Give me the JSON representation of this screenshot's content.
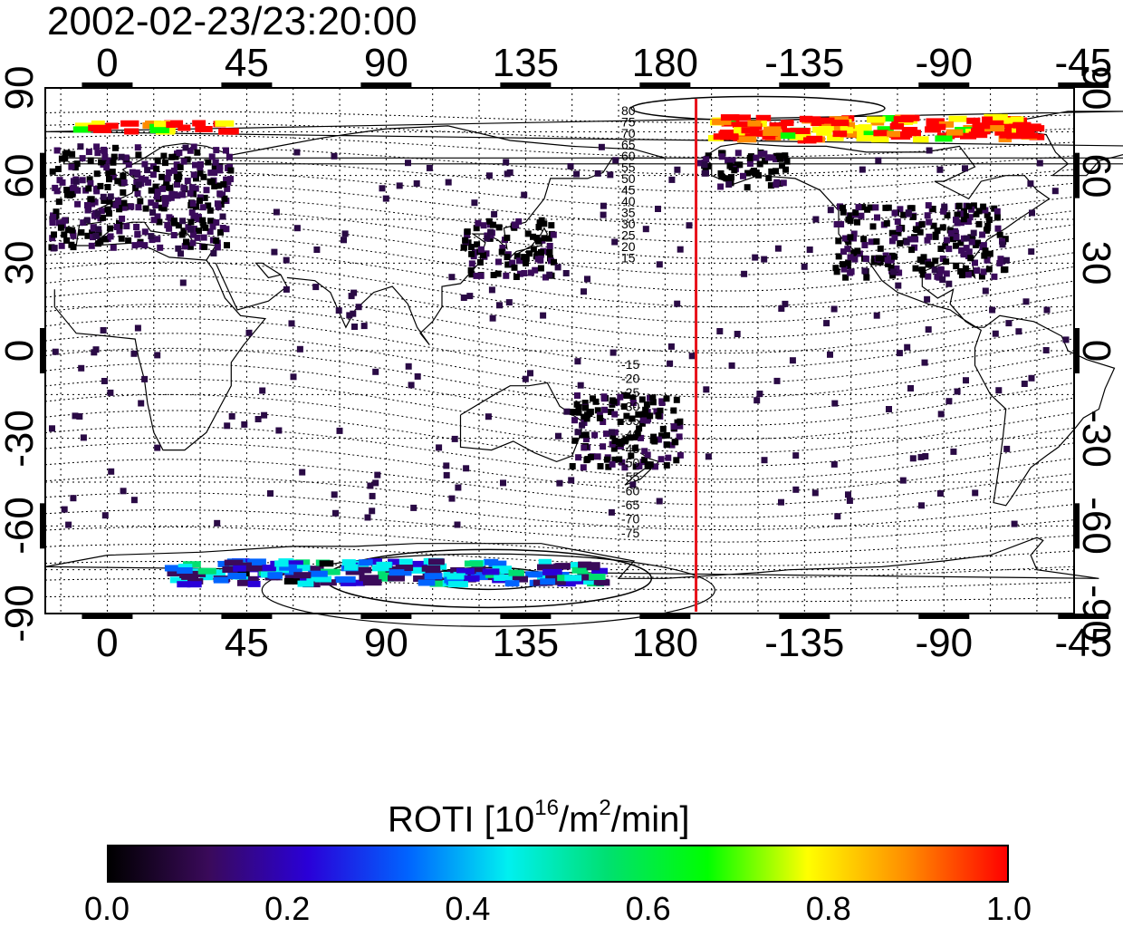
{
  "timestamp": "2002-02-23/23:20:00",
  "map": {
    "title": "2002-02-23/23:20:00",
    "x_top_ticks": [
      "0",
      "45",
      "90",
      "135",
      "180",
      "-135",
      "-90",
      "-45"
    ],
    "x_bottom_ticks": [
      "0",
      "45",
      "90",
      "135",
      "180",
      "-135",
      "-90",
      "-45"
    ],
    "y_left_ticks": [
      "90",
      "60",
      "30",
      "0",
      "-30",
      "-60",
      "-90"
    ],
    "y_right_ticks": [
      "90",
      "60",
      "30",
      "0",
      "-30",
      "-60",
      "-90"
    ],
    "terminator_longitude": -170,
    "terminator_color": "#e8121a",
    "contour_labels": [
      "80",
      "75",
      "70",
      "65",
      "60",
      "55",
      "50",
      "45",
      "40",
      "35",
      "30",
      "25",
      "20",
      "15",
      "-15",
      "-20",
      "-25",
      "-30",
      "-35",
      "-40",
      "-45",
      "-50",
      "-55",
      "-60",
      "-65",
      "-70",
      "-75"
    ],
    "x_range": [
      -20,
      312
    ],
    "y_range": [
      -90,
      90
    ]
  },
  "colorbar": {
    "title_main": "ROTI  [10",
    "title_sup1": "16",
    "title_mid": "/m",
    "title_sup2": "2",
    "title_end": "/min]",
    "ticks": [
      "0.0",
      "0.2",
      "0.4",
      "0.6",
      "0.8",
      "1.0"
    ],
    "range": [
      0.0,
      1.0
    ],
    "colors": [
      "#000000",
      "#3a0a5a",
      "#2a00d8",
      "#0064ff",
      "#00f0f0",
      "#00e070",
      "#00ff00",
      "#ffff00",
      "#ff8c00",
      "#ff0000"
    ]
  },
  "chart_data": {
    "type": "heatmap",
    "title": "2002-02-23/23:20:00",
    "value_label": "ROTI  [10^16/m^2/min]",
    "value_range": [
      0.0,
      1.0
    ],
    "x_ticks": [
      0,
      45,
      90,
      135,
      180,
      -135,
      -90,
      -45
    ],
    "y_ticks": [
      90,
      60,
      30,
      0,
      -30,
      -60,
      -90
    ],
    "regions": [
      {
        "lon_min": -18,
        "lon_max": 40,
        "lat_min": 35,
        "lat_max": 70,
        "value": 0.06
      },
      {
        "lon_min": 115,
        "lon_max": 145,
        "lat_min": 25,
        "lat_max": 45,
        "value": 0.05
      },
      {
        "lon_min": 150,
        "lon_max": 185,
        "lat_min": -40,
        "lat_max": -15,
        "value": 0.05
      },
      {
        "lon_min": -125,
        "lon_max": -70,
        "lat_min": 25,
        "lat_max": 50,
        "value": 0.05
      },
      {
        "lon_min": 190,
        "lon_max": 220,
        "lat_min": 55,
        "lat_max": 68,
        "value": 0.05
      },
      {
        "lon_min": -10,
        "lon_max": 40,
        "lat_min": 75,
        "lat_max": 78,
        "value": 0.9
      },
      {
        "lon_min": 195,
        "lon_max": 300,
        "lat_min": 72,
        "lat_max": 80,
        "value": 0.95
      },
      {
        "lon_min": 20,
        "lon_max": 160,
        "lat_min": -80,
        "lat_max": -72,
        "value": 0.3
      }
    ]
  }
}
